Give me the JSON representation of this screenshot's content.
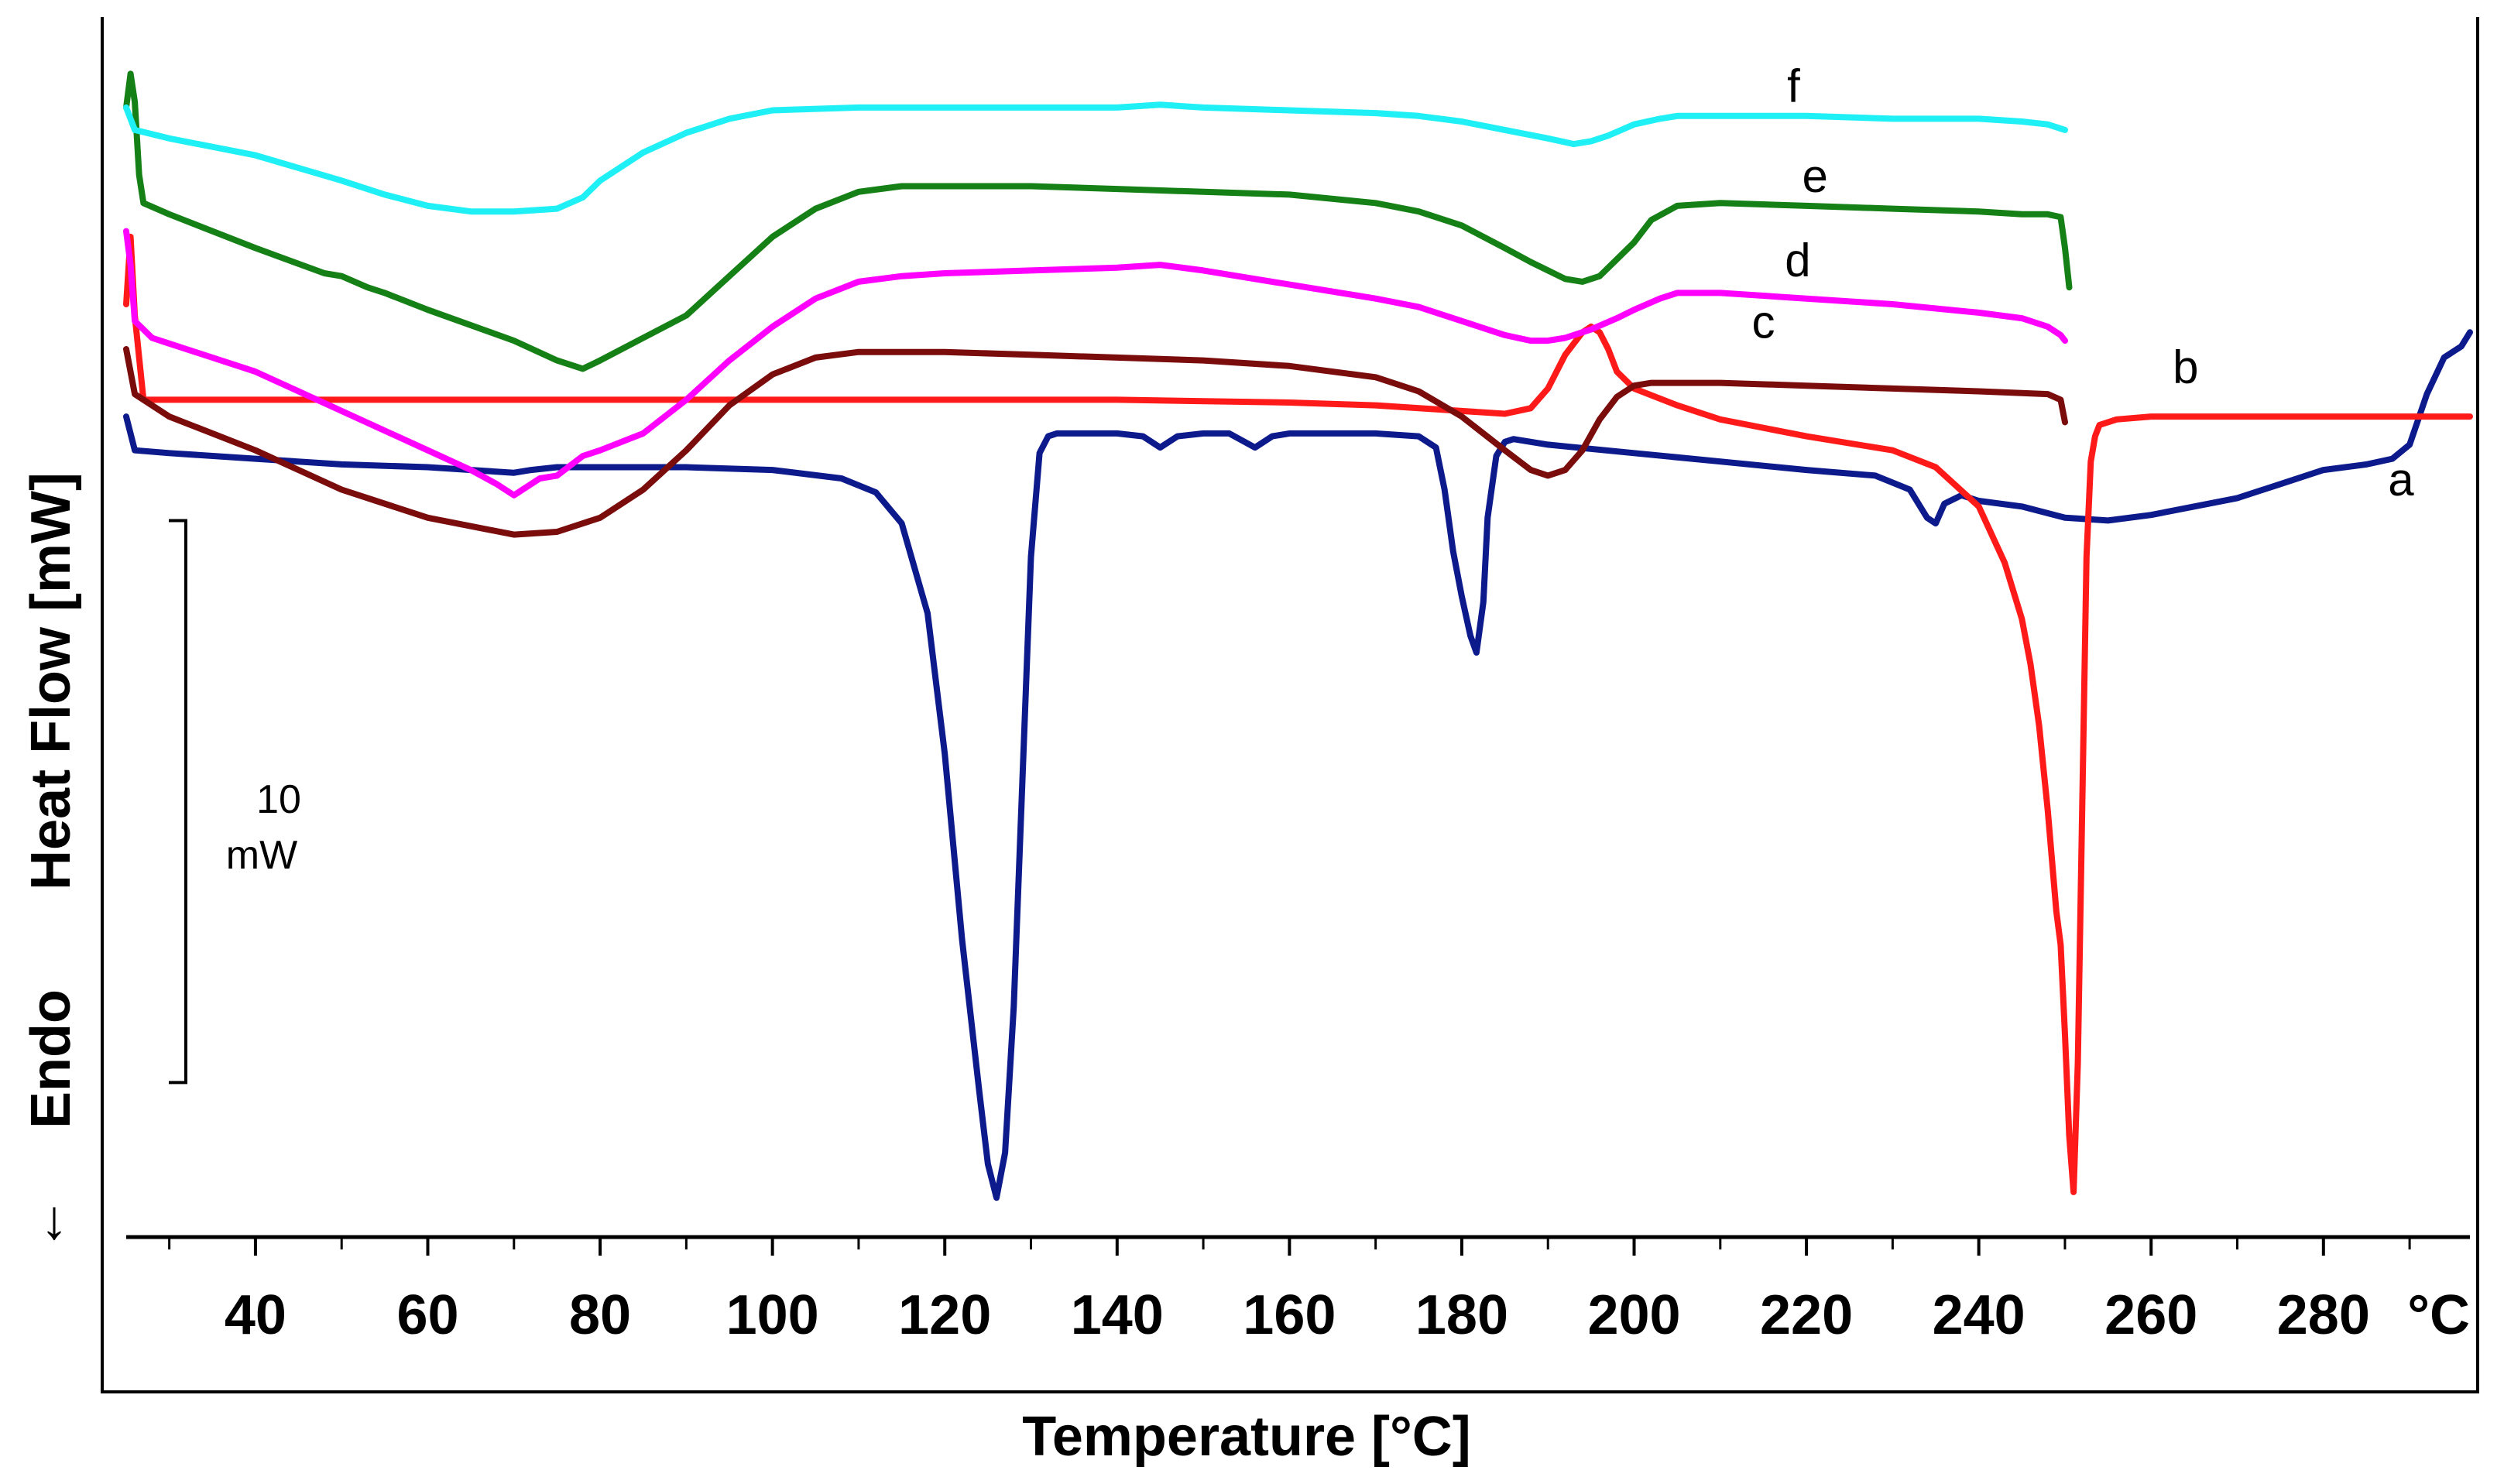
{
  "chart_data": {
    "type": "line",
    "title": "",
    "xlabel": "Temperature [°C]",
    "ylabel": "Heat Flow [mW]",
    "y_direction_label": "Endo",
    "y_arrow": "↓",
    "x_unit_label": "°C",
    "xlim": [
      25,
      297
    ],
    "ylim": [
      -14.6,
      7.0
    ],
    "x_ticks": [
      40,
      60,
      80,
      100,
      120,
      140,
      160,
      180,
      200,
      220,
      240,
      260,
      280
    ],
    "x_tick_labels": [
      "40",
      "60",
      "80",
      "100",
      "120",
      "140",
      "160",
      "180",
      "200",
      "220",
      "240",
      "260",
      "280"
    ],
    "scale_bar": {
      "value_label": "10",
      "unit_label": "mW",
      "mw": 10
    },
    "series": [
      {
        "name": "a",
        "label_at": [
          289,
          -1.4
        ],
        "color": "#0d1a8c",
        "x": [
          25,
          26,
          30,
          40,
          50,
          60,
          65,
          70,
          72,
          75,
          80,
          90,
          100,
          108,
          112,
          115,
          118,
          120,
          122,
          124,
          125,
          126,
          127,
          128,
          129,
          130,
          131,
          132,
          133,
          135,
          140,
          143,
          145,
          147,
          150,
          153,
          156,
          158,
          160,
          165,
          170,
          175,
          177,
          178,
          179,
          180,
          181,
          181.7,
          182.5,
          183,
          184,
          185,
          186,
          188,
          190,
          200,
          210,
          220,
          228,
          232,
          234,
          235,
          236,
          238,
          240,
          245,
          250,
          255,
          260,
          265,
          270,
          275,
          280,
          285,
          288,
          290,
          292,
          294,
          296,
          297
        ],
        "y": [
          0,
          -0.6,
          -0.65,
          -0.75,
          -0.85,
          -0.9,
          -0.95,
          -1.0,
          -0.95,
          -0.9,
          -0.9,
          -0.9,
          -0.95,
          -1.1,
          -1.35,
          -1.9,
          -3.5,
          -6.0,
          -9.3,
          -12.0,
          -13.3,
          -13.9,
          -13.1,
          -10.5,
          -6.5,
          -2.5,
          -0.65,
          -0.35,
          -0.3,
          -0.3,
          -0.3,
          -0.35,
          -0.55,
          -0.35,
          -0.3,
          -0.3,
          -0.55,
          -0.35,
          -0.3,
          -0.3,
          -0.3,
          -0.35,
          -0.55,
          -1.3,
          -2.4,
          -3.2,
          -3.9,
          -4.2,
          -3.3,
          -1.8,
          -0.7,
          -0.45,
          -0.4,
          -0.45,
          -0.5,
          -0.65,
          -0.8,
          -0.95,
          -1.05,
          -1.3,
          -1.8,
          -1.9,
          -1.55,
          -1.4,
          -1.5,
          -1.6,
          -1.8,
          -1.85,
          -1.75,
          -1.6,
          -1.45,
          -1.2,
          -0.95,
          -0.85,
          -0.75,
          -0.5,
          0.4,
          1.05,
          1.25,
          1.5
        ]
      },
      {
        "name": "b",
        "label_at": [
          264,
          0.6
        ],
        "color": "#ff1a1a",
        "x": [
          25,
          25.5,
          26,
          27,
          30,
          40,
          60,
          80,
          100,
          120,
          140,
          160,
          170,
          180,
          185,
          188,
          190,
          192,
          194,
          195,
          196,
          197,
          198,
          200,
          205,
          210,
          220,
          230,
          235,
          240,
          243,
          245,
          246,
          247,
          248,
          249,
          249.5,
          250,
          250.5,
          251,
          251.5,
          252,
          252.5,
          253,
          253.5,
          254,
          256,
          260,
          270,
          280,
          290,
          297
        ],
        "y": [
          2.0,
          3.2,
          1.8,
          0.3,
          0.3,
          0.3,
          0.3,
          0.3,
          0.3,
          0.3,
          0.3,
          0.25,
          0.2,
          0.1,
          0.05,
          0.15,
          0.5,
          1.1,
          1.5,
          1.6,
          1.5,
          1.2,
          0.8,
          0.5,
          0.2,
          -0.05,
          -0.35,
          -0.6,
          -0.9,
          -1.6,
          -2.6,
          -3.6,
          -4.4,
          -5.5,
          -7.0,
          -8.8,
          -9.4,
          -11.0,
          -12.8,
          -13.8,
          -11.5,
          -7.0,
          -2.5,
          -0.8,
          -0.35,
          -0.15,
          -0.05,
          0,
          0,
          0,
          0,
          0
        ]
      },
      {
        "name": "c",
        "label_at": [
          215,
          1.4
        ],
        "color": "#7a0c0c",
        "x": [
          25,
          26,
          30,
          40,
          50,
          60,
          70,
          75,
          80,
          85,
          90,
          95,
          100,
          105,
          110,
          115,
          120,
          130,
          140,
          150,
          160,
          170,
          175,
          180,
          185,
          188,
          190,
          192,
          194,
          196,
          198,
          200,
          202,
          205,
          210,
          220,
          230,
          240,
          248,
          249.5,
          250
        ],
        "y": [
          1.2,
          0.4,
          0.0,
          -0.6,
          -1.3,
          -1.8,
          -2.1,
          -2.05,
          -1.8,
          -1.3,
          -0.6,
          0.2,
          0.75,
          1.05,
          1.15,
          1.15,
          1.15,
          1.1,
          1.05,
          1.0,
          0.9,
          0.7,
          0.45,
          0.0,
          -0.6,
          -0.95,
          -1.05,
          -0.95,
          -0.6,
          -0.05,
          0.35,
          0.55,
          0.6,
          0.6,
          0.6,
          0.55,
          0.5,
          0.45,
          0.4,
          0.3,
          -0.1
        ]
      },
      {
        "name": "d",
        "label_at": [
          219,
          2.5
        ],
        "color": "#ff00ff",
        "x": [
          25,
          25.5,
          26,
          28,
          30,
          40,
          50,
          60,
          65,
          68,
          70,
          71,
          73,
          75,
          78,
          80,
          85,
          90,
          95,
          100,
          105,
          110,
          115,
          120,
          130,
          140,
          145,
          150,
          160,
          170,
          175,
          180,
          185,
          188,
          190,
          192,
          195,
          198,
          200,
          203,
          205,
          210,
          220,
          230,
          240,
          245,
          248,
          249.5,
          250
        ],
        "y": [
          3.3,
          2.7,
          1.7,
          1.4,
          1.3,
          0.8,
          0.1,
          -0.6,
          -0.95,
          -1.2,
          -1.4,
          -1.3,
          -1.1,
          -1.05,
          -0.7,
          -0.6,
          -0.3,
          0.3,
          1.0,
          1.6,
          2.1,
          2.4,
          2.5,
          2.55,
          2.6,
          2.65,
          2.7,
          2.6,
          2.35,
          2.1,
          1.95,
          1.7,
          1.45,
          1.35,
          1.35,
          1.4,
          1.55,
          1.75,
          1.9,
          2.1,
          2.2,
          2.2,
          2.1,
          2.0,
          1.85,
          1.75,
          1.6,
          1.45,
          1.35
        ]
      },
      {
        "name": "e",
        "label_at": [
          221,
          4.0
        ],
        "color": "#158015",
        "x": [
          25,
          25.5,
          26,
          26.5,
          27,
          30,
          40,
          48,
          50,
          53,
          55,
          60,
          70,
          75,
          78,
          80,
          85,
          90,
          95,
          100,
          105,
          110,
          115,
          120,
          130,
          140,
          150,
          160,
          170,
          175,
          180,
          185,
          188,
          190,
          192,
          194,
          196,
          198,
          200,
          202,
          205,
          210,
          220,
          230,
          240,
          245,
          248,
          249.5,
          250,
          250.5
        ],
        "y": [
          5.5,
          6.1,
          5.6,
          4.3,
          3.8,
          3.6,
          3.0,
          2.55,
          2.5,
          2.3,
          2.2,
          1.9,
          1.35,
          1.0,
          0.85,
          1.0,
          1.4,
          1.8,
          2.5,
          3.2,
          3.7,
          4.0,
          4.1,
          4.1,
          4.1,
          4.05,
          4.0,
          3.95,
          3.8,
          3.65,
          3.4,
          3.0,
          2.75,
          2.6,
          2.45,
          2.4,
          2.5,
          2.8,
          3.1,
          3.5,
          3.75,
          3.8,
          3.75,
          3.7,
          3.65,
          3.6,
          3.6,
          3.55,
          3.0,
          2.3
        ]
      },
      {
        "name": "f",
        "label_at": [
          218.5,
          5.6
        ],
        "color": "#1ef0f5",
        "x": [
          25,
          26,
          30,
          40,
          50,
          55,
          60,
          65,
          70,
          75,
          78,
          80,
          85,
          90,
          95,
          100,
          110,
          120,
          130,
          140,
          145,
          150,
          160,
          170,
          175,
          180,
          185,
          190,
          193,
          195,
          197,
          200,
          203,
          205,
          210,
          220,
          230,
          240,
          245,
          248,
          250
        ],
        "y": [
          5.5,
          5.1,
          4.95,
          4.65,
          4.2,
          3.95,
          3.75,
          3.65,
          3.65,
          3.7,
          3.9,
          4.2,
          4.7,
          5.05,
          5.3,
          5.45,
          5.5,
          5.5,
          5.5,
          5.5,
          5.55,
          5.5,
          5.45,
          5.4,
          5.35,
          5.25,
          5.1,
          4.95,
          4.85,
          4.9,
          5.0,
          5.2,
          5.3,
          5.35,
          5.35,
          5.35,
          5.3,
          5.3,
          5.25,
          5.2,
          5.1
        ]
      }
    ]
  }
}
